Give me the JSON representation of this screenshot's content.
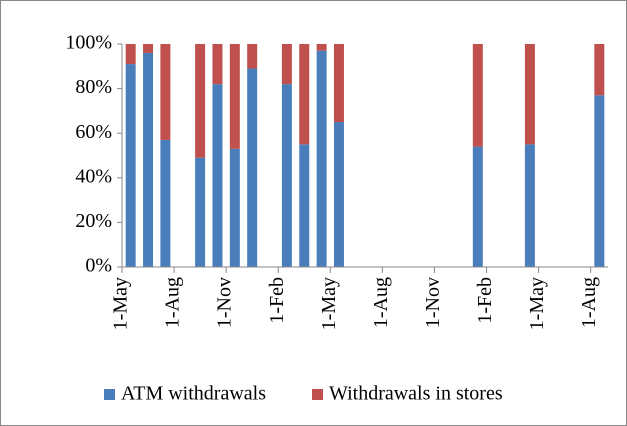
{
  "chart_data": {
    "type": "stacked_bar_100",
    "categories": [
      "1-May",
      null,
      null,
      "1-Aug",
      null,
      null,
      "1-Nov",
      null,
      null,
      "1-Feb",
      null,
      null,
      "1-May",
      null,
      null,
      "1-Aug",
      null,
      null,
      "1-Nov",
      null,
      null,
      "1-Feb",
      null,
      null,
      "1-May",
      null,
      null,
      "1-Aug"
    ],
    "series": [
      {
        "name": "ATM withdrawals",
        "color": "#4a7ebb",
        "values": [
          91,
          96,
          57,
          null,
          49,
          82,
          53,
          89,
          null,
          82,
          55,
          97,
          65,
          null,
          null,
          null,
          null,
          null,
          null,
          null,
          54,
          null,
          null,
          55,
          null,
          null,
          null,
          77
        ]
      },
      {
        "name": "Withdrawals in stores",
        "color": "#c0504d",
        "values": [
          9,
          4,
          43,
          null,
          51,
          18,
          47,
          11,
          null,
          18,
          45,
          3,
          35,
          null,
          null,
          null,
          null,
          null,
          null,
          null,
          46,
          null,
          null,
          45,
          null,
          null,
          null,
          23
        ]
      }
    ],
    "ylim": [
      0,
      100
    ],
    "yticks": [
      {
        "value": 0,
        "label": "0%"
      },
      {
        "value": 20,
        "label": "20%"
      },
      {
        "value": 40,
        "label": "40%"
      },
      {
        "value": 60,
        "label": "60%"
      },
      {
        "value": 80,
        "label": "80%"
      },
      {
        "value": 100,
        "label": "100%"
      }
    ],
    "legend": "bottom",
    "grid": false
  }
}
